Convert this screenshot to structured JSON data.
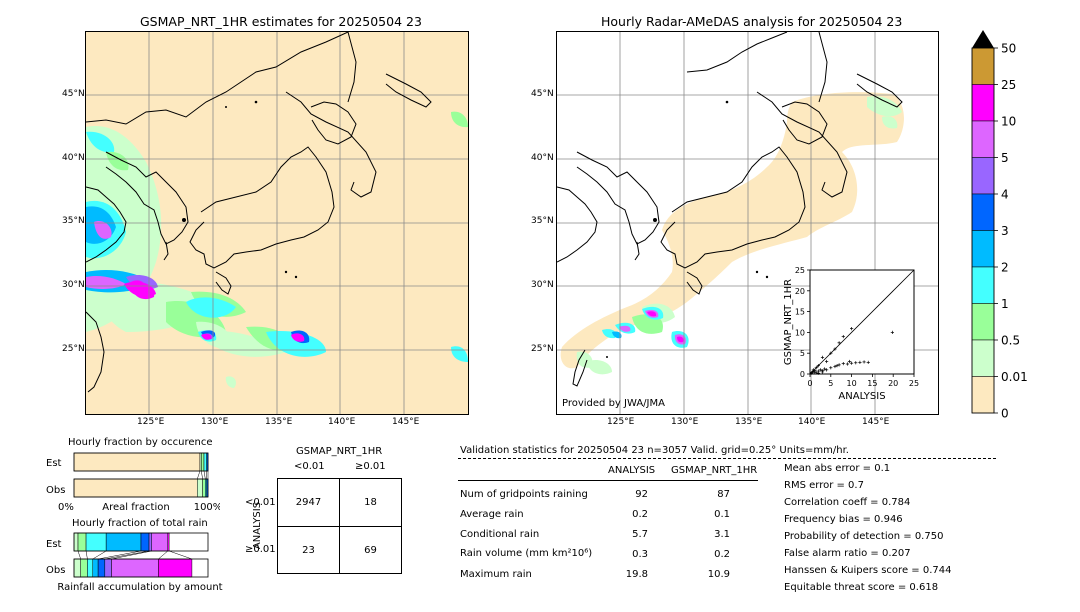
{
  "left_map": {
    "title": "GSMAP_NRT_1HR estimates for 20250504 23",
    "lat_labels": [
      "45°N",
      "40°N",
      "35°N",
      "30°N",
      "25°N"
    ],
    "lon_labels": [
      "125°E",
      "130°E",
      "135°E",
      "140°E",
      "145°E"
    ]
  },
  "right_map": {
    "title": "Hourly Radar-AMeDAS analysis for 20250504 23",
    "lat_labels": [
      "45°N",
      "40°N",
      "35°N",
      "30°N",
      "25°N"
    ],
    "lon_labels": [
      "125°E",
      "130°E",
      "135°E",
      "140°E",
      "145°E"
    ],
    "credit": "Provided by JWA/JMA"
  },
  "colorbar": {
    "labels": [
      "50",
      "25",
      "10",
      "5",
      "4",
      "3",
      "2",
      "1",
      "0.5",
      "0.01",
      "0"
    ],
    "colors": [
      "#cc9933",
      "#ff00ff",
      "#dd66ff",
      "#9966ff",
      "#0066ff",
      "#00bbff",
      "#44ffff",
      "#99ff99",
      "#ccffcc",
      "#fde9c0"
    ],
    "extend_color": "#000000"
  },
  "chart_data": [
    {
      "type": "scatter",
      "xlabel": "ANALYSIS",
      "ylabel": "GSMAP_NRT_1HR",
      "xlim": [
        0,
        25
      ],
      "ylim": [
        0,
        25
      ],
      "ticks": [
        "0",
        "5",
        "10",
        "15",
        "20",
        "25"
      ],
      "points": [
        [
          0.3,
          0.2
        ],
        [
          0.5,
          0.4
        ],
        [
          0.7,
          0.6
        ],
        [
          1,
          0.5
        ],
        [
          1.2,
          0.8
        ],
        [
          1.5,
          0.3
        ],
        [
          2,
          0.7
        ],
        [
          2.5,
          1
        ],
        [
          3,
          0.8
        ],
        [
          3.5,
          1.2
        ],
        [
          4,
          1
        ],
        [
          5,
          1.5
        ],
        [
          6,
          1.8
        ],
        [
          6.5,
          2
        ],
        [
          7,
          2.2
        ],
        [
          8,
          2.5
        ],
        [
          9,
          2.4
        ],
        [
          10,
          2.6
        ],
        [
          12,
          2.8
        ],
        [
          13,
          2.9
        ],
        [
          19.8,
          10
        ],
        [
          5,
          5
        ],
        [
          6,
          6
        ],
        [
          7,
          7.5
        ],
        [
          8,
          9
        ],
        [
          10,
          10.9
        ],
        [
          4,
          3
        ],
        [
          3,
          4
        ],
        [
          2,
          2
        ],
        [
          1.5,
          1.5
        ],
        [
          0.8,
          1
        ],
        [
          9.5,
          3
        ],
        [
          11,
          2.7
        ],
        [
          14,
          2.8
        ],
        [
          2,
          0.2
        ],
        [
          3,
          0.5
        ]
      ]
    },
    {
      "type": "bar",
      "title": "Hourly fraction by occurence",
      "categories": [
        "Est",
        "Obs"
      ],
      "xlabel": "Areal fraction",
      "xtick_labels": [
        "0%",
        "100%"
      ],
      "series": [
        {
          "values": [
            0.94,
            0.92
          ]
        },
        {
          "values": [
            0.01,
            0.04
          ]
        },
        {
          "values": [
            0.02,
            0.02
          ]
        },
        {
          "values": [
            0.02,
            0.01
          ]
        },
        {
          "values": [
            0.01,
            0.01
          ]
        }
      ],
      "colors": [
        "#fde9c0",
        "#ccffcc",
        "#99ff99",
        "#44ffff",
        "#0066ff"
      ]
    },
    {
      "type": "bar",
      "title": "Hourly fraction of total rain",
      "categories": [
        "Est",
        "Obs"
      ],
      "xlabel": "Rainfall accumulation by amount",
      "series": [
        {
          "values": [
            0.03,
            0.05
          ]
        },
        {
          "values": [
            0.06,
            0.05
          ]
        },
        {
          "values": [
            0.15,
            0.04
          ]
        },
        {
          "values": [
            0.26,
            0.04
          ]
        },
        {
          "values": [
            0.06,
            0.05
          ]
        },
        {
          "values": [
            0.02,
            0.05
          ]
        },
        {
          "values": [
            0.12,
            0.35
          ]
        },
        {
          "values": [
            0.01,
            0.25
          ]
        }
      ],
      "colors": [
        "#ccffcc",
        "#99ff99",
        "#44ffff",
        "#00bbff",
        "#0066ff",
        "#9966ff",
        "#dd66ff",
        "#ff00ff"
      ]
    }
  ],
  "contingency": {
    "title": "GSMAP_NRT_1HR",
    "col_labels": [
      "<0.01",
      "≥0.01"
    ],
    "row_axis_label": "ANALYSIS",
    "row_labels": [
      "<0.01",
      "≥0.01"
    ],
    "cells": [
      "2947",
      "18",
      "23",
      "69"
    ]
  },
  "validation": {
    "header": "Validation statistics for 20250504 23  n=3057 Valid. grid=0.25° Units=mm/hr.",
    "col_analysis": "ANALYSIS",
    "col_gsmap": "GSMAP_NRT_1HR",
    "rows": [
      {
        "label": "Num of gridpoints raining",
        "analysis": "92",
        "gsmap": "87"
      },
      {
        "label": "Average rain",
        "analysis": "0.2",
        "gsmap": "0.1"
      },
      {
        "label": "Conditional rain",
        "analysis": "5.7",
        "gsmap": "3.1"
      },
      {
        "label": "Rain volume (mm km²10⁶)",
        "analysis": "0.3",
        "gsmap": "0.2"
      },
      {
        "label": "Maximum rain",
        "analysis": "19.8",
        "gsmap": "10.9"
      }
    ],
    "scores": [
      "Mean abs error =    0.1",
      "RMS error =    0.7",
      "Correlation coeff =  0.784",
      "Frequency bias =  0.946",
      "Probability of detection =  0.750",
      "False alarm ratio =  0.207",
      "Hanssen & Kuipers score =  0.744",
      "Equitable threat score =  0.618"
    ]
  }
}
